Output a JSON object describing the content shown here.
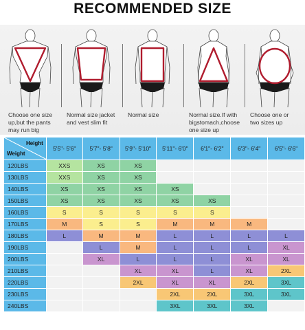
{
  "title": "RECOMMENDED SIZE",
  "body_types": [
    {
      "shape": "inverted-triangle",
      "caption": [
        "Choose one size",
        "up,but the pants",
        "may run big"
      ]
    },
    {
      "shape": "trapezoid",
      "caption": [
        "Normal size jacket",
        "and vest slim fit"
      ]
    },
    {
      "shape": "rectangle",
      "caption": [
        "Normal size"
      ]
    },
    {
      "shape": "triangle",
      "caption": [
        "Normal size.If with",
        "bigstomach,choose",
        "one size up"
      ]
    },
    {
      "shape": "oval",
      "caption": [
        "Choose one or",
        "two sizes up"
      ]
    }
  ],
  "table": {
    "height_label": "Height",
    "weight_label": "Weight",
    "height_columns": [
      "5'5\"- 5'6\"",
      "5'7\"- 5'8\"",
      "5'9\"- 5'10\"",
      "5'11\"- 6'0\"",
      "6'1\"- 6'2\"",
      "6'3\"- 6'4\"",
      "6'5\"- 6'6\""
    ],
    "rows": [
      {
        "weight": "120LBS",
        "sizes": [
          "XXS",
          "XS",
          "XS",
          "",
          "",
          "",
          ""
        ]
      },
      {
        "weight": "130LBS",
        "sizes": [
          "XXS",
          "XS",
          "XS",
          "",
          "",
          "",
          ""
        ]
      },
      {
        "weight": "140LBS",
        "sizes": [
          "XS",
          "XS",
          "XS",
          "XS",
          "",
          "",
          ""
        ]
      },
      {
        "weight": "150LBS",
        "sizes": [
          "XS",
          "XS",
          "XS",
          "XS",
          "XS",
          "",
          ""
        ]
      },
      {
        "weight": "160LBS",
        "sizes": [
          "S",
          "S",
          "S",
          "S",
          "S",
          "",
          ""
        ]
      },
      {
        "weight": "170LBS",
        "sizes": [
          "M",
          "S",
          "S",
          "M",
          "M",
          "M",
          ""
        ]
      },
      {
        "weight": "180LBS",
        "sizes": [
          "L",
          "M",
          "M",
          "L",
          "L",
          "L",
          "L"
        ]
      },
      {
        "weight": "190LBS",
        "sizes": [
          "",
          "L",
          "M",
          "L",
          "L",
          "L",
          "XL"
        ]
      },
      {
        "weight": "200LBS",
        "sizes": [
          "",
          "XL",
          "L",
          "L",
          "L",
          "XL",
          "XL"
        ]
      },
      {
        "weight": "210LBS",
        "sizes": [
          "",
          "",
          "XL",
          "XL",
          "L",
          "XL",
          "2XL"
        ]
      },
      {
        "weight": "220LBS",
        "sizes": [
          "",
          "",
          "2XL",
          "XL",
          "XL",
          "2XL",
          "3XL"
        ]
      },
      {
        "weight": "230LBS",
        "sizes": [
          "",
          "",
          "",
          "2XL",
          "2XL",
          "3XL",
          "3XL"
        ]
      },
      {
        "weight": "240LBS",
        "sizes": [
          "",
          "",
          "",
          "3XL",
          "3XL",
          "3XL",
          ""
        ]
      }
    ]
  },
  "colors": {
    "header_blue": "#5bb9e8",
    "XXS": "#b5e4a0",
    "XS": "#8fd3a4",
    "S": "#fbee8e",
    "M": "#f9b87f",
    "L": "#8e8fd6",
    "XL": "#c995cf",
    "2XL": "#f8c775",
    "3XL": "#5ec5ca",
    "empty": "#f2f2f2",
    "shape_outline": "#b01c2e"
  }
}
